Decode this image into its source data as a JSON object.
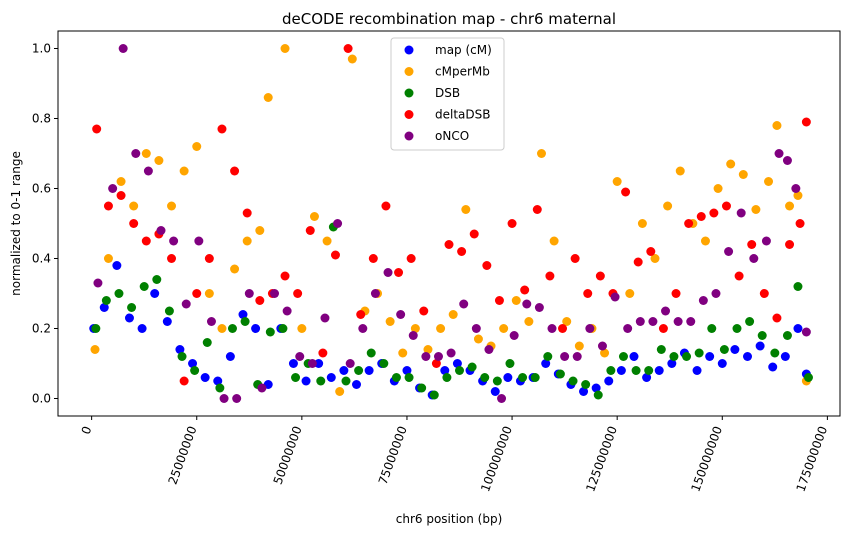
{
  "chart_data": {
    "type": "scatter",
    "title": "deCODE recombination map - chr6 maternal",
    "xlabel": "chr6 position (bp)",
    "ylabel": "normalized to 0-1 range",
    "xlim": [
      -8000000,
      178000000
    ],
    "ylim": [
      -0.05,
      1.05
    ],
    "xticks": [
      0,
      25000000,
      50000000,
      75000000,
      100000000,
      125000000,
      150000000,
      175000000
    ],
    "xtick_labels": [
      "0",
      "25000000",
      "50000000",
      "75000000",
      "100000000",
      "125000000",
      "150000000",
      "175000000"
    ],
    "yticks": [
      0.0,
      0.2,
      0.4,
      0.6,
      0.8,
      1.0
    ],
    "ytick_labels": [
      "0.0",
      "0.2",
      "0.4",
      "0.6",
      "0.8",
      "1.0"
    ],
    "legend_position": "top-center",
    "series": [
      {
        "name": "map (cM)",
        "color": "#0000ff",
        "x": [
          500000,
          3000000,
          6000000,
          9000000,
          12000000,
          15000000,
          18000000,
          21000000,
          24000000,
          27000000,
          30000000,
          33000000,
          36000000,
          39000000,
          42000000,
          45000000,
          48000000,
          51000000,
          54000000,
          57000000,
          60000000,
          63000000,
          66000000,
          69000000,
          72000000,
          75000000,
          78000000,
          81000000,
          84000000,
          87000000,
          90000000,
          93000000,
          96000000,
          99000000,
          102000000,
          105000000,
          108000000,
          111000000,
          114000000,
          117000000,
          120000000,
          123000000,
          126000000,
          129000000,
          132000000,
          135000000,
          138000000,
          141000000,
          144000000,
          147000000,
          150000000,
          153000000,
          156000000,
          159000000,
          162000000,
          165000000,
          168000000,
          170000000
        ],
        "y": [
          0.2,
          0.26,
          0.38,
          0.23,
          0.2,
          0.3,
          0.22,
          0.14,
          0.1,
          0.06,
          0.05,
          0.12,
          0.24,
          0.2,
          0.04,
          0.2,
          0.1,
          0.05,
          0.1,
          0.06,
          0.08,
          0.04,
          0.08,
          0.1,
          0.05,
          0.08,
          0.03,
          0.01,
          0.08,
          0.1,
          0.08,
          0.05,
          0.02,
          0.06,
          0.05,
          0.06,
          0.1,
          0.07,
          0.04,
          0.02,
          0.03,
          0.05,
          0.08,
          0.12,
          0.06,
          0.08,
          0.1,
          0.13,
          0.08,
          0.12,
          0.1,
          0.14,
          0.12,
          0.15,
          0.09,
          0.12,
          0.2,
          0.07
        ]
      },
      {
        "name": "cMperMb",
        "color": "#ffa500",
        "x": [
          800000,
          4000000,
          7000000,
          10000000,
          13000000,
          16000000,
          19000000,
          22000000,
          25000000,
          28000000,
          31000000,
          34000000,
          37000000,
          40000000,
          42000000,
          46000000,
          50000000,
          53000000,
          56000000,
          59000000,
          62000000,
          65000000,
          68000000,
          71000000,
          74000000,
          77000000,
          80000000,
          83000000,
          86000000,
          89000000,
          92000000,
          95000000,
          98000000,
          101000000,
          104000000,
          107000000,
          110000000,
          113000000,
          116000000,
          119000000,
          122000000,
          125000000,
          128000000,
          131000000,
          134000000,
          137000000,
          140000000,
          143000000,
          146000000,
          149000000,
          152000000,
          155000000,
          158000000,
          161000000,
          163000000,
          166000000,
          168000000,
          170000000
        ],
        "y": [
          0.14,
          0.4,
          0.62,
          0.55,
          0.7,
          0.68,
          0.55,
          0.65,
          0.72,
          0.3,
          0.2,
          0.37,
          0.45,
          0.48,
          0.86,
          1.0,
          0.2,
          0.52,
          0.45,
          0.02,
          0.97,
          0.25,
          0.3,
          0.22,
          0.13,
          0.2,
          0.14,
          0.2,
          0.24,
          0.54,
          0.17,
          0.15,
          0.2,
          0.28,
          0.22,
          0.7,
          0.45,
          0.22,
          0.15,
          0.2,
          0.13,
          0.62,
          0.3,
          0.5,
          0.4,
          0.55,
          0.65,
          0.5,
          0.45,
          0.6,
          0.67,
          0.64,
          0.54,
          0.62,
          0.78,
          0.55,
          0.58,
          0.05
        ]
      },
      {
        "name": "DSB",
        "color": "#008000",
        "x": [
          1000000,
          3500000,
          6500000,
          9500000,
          12500000,
          15500000,
          18500000,
          21500000,
          24500000,
          27500000,
          30500000,
          33500000,
          36500000,
          39500000,
          42500000,
          45500000,
          48500000,
          51500000,
          54500000,
          57500000,
          60500000,
          63500000,
          66500000,
          69500000,
          72500000,
          75500000,
          78500000,
          81500000,
          84500000,
          87500000,
          90500000,
          93500000,
          96500000,
          99500000,
          102500000,
          105500000,
          108500000,
          111500000,
          114500000,
          117500000,
          120500000,
          123500000,
          126500000,
          129500000,
          132500000,
          135500000,
          138500000,
          141500000,
          144500000,
          147500000,
          150500000,
          153500000,
          156500000,
          159500000,
          162500000,
          165500000,
          168000000,
          170500000
        ],
        "y": [
          0.2,
          0.28,
          0.3,
          0.26,
          0.32,
          0.34,
          0.25,
          0.12,
          0.08,
          0.16,
          0.03,
          0.2,
          0.22,
          0.04,
          0.19,
          0.2,
          0.06,
          0.1,
          0.05,
          0.49,
          0.05,
          0.08,
          0.13,
          0.1,
          0.06,
          0.06,
          0.03,
          0.01,
          0.06,
          0.08,
          0.09,
          0.06,
          0.05,
          0.1,
          0.06,
          0.06,
          0.12,
          0.07,
          0.05,
          0.04,
          0.01,
          0.08,
          0.12,
          0.08,
          0.08,
          0.14,
          0.12,
          0.12,
          0.13,
          0.2,
          0.14,
          0.2,
          0.22,
          0.18,
          0.13,
          0.18,
          0.32,
          0.06
        ]
      },
      {
        "name": "deltaDSB",
        "color": "#ff0000",
        "x": [
          1200000,
          4000000,
          7000000,
          10000000,
          13000000,
          16000000,
          19000000,
          22000000,
          25000000,
          28000000,
          31000000,
          34000000,
          37000000,
          40000000,
          43000000,
          46000000,
          49000000,
          52000000,
          55000000,
          58000000,
          61000000,
          64000000,
          67000000,
          70000000,
          73000000,
          76000000,
          79000000,
          82000000,
          85000000,
          88000000,
          91000000,
          94000000,
          97000000,
          100000000,
          103000000,
          106000000,
          109000000,
          112000000,
          115000000,
          118000000,
          121000000,
          124000000,
          127000000,
          130000000,
          133000000,
          136000000,
          139000000,
          142000000,
          145000000,
          148000000,
          151000000,
          154000000,
          157000000,
          160000000,
          163000000,
          166000000,
          168500000,
          170000000
        ],
        "y": [
          0.77,
          0.55,
          0.58,
          0.5,
          0.45,
          0.47,
          0.4,
          0.05,
          0.3,
          0.4,
          0.77,
          0.65,
          0.53,
          0.28,
          0.3,
          0.35,
          0.3,
          0.48,
          0.13,
          0.41,
          1.0,
          0.24,
          0.4,
          0.55,
          0.36,
          0.4,
          0.25,
          0.1,
          0.44,
          0.42,
          0.47,
          0.38,
          0.28,
          0.5,
          0.31,
          0.54,
          0.35,
          0.2,
          0.4,
          0.3,
          0.35,
          0.3,
          0.59,
          0.39,
          0.42,
          0.2,
          0.3,
          0.5,
          0.52,
          0.53,
          0.55,
          0.35,
          0.44,
          0.3,
          0.23,
          0.44,
          0.5,
          0.79
        ]
      },
      {
        "name": "oNCO",
        "color": "#800080",
        "x": [
          1500000,
          5000000,
          7500000,
          10500000,
          13500000,
          16500000,
          19500000,
          22500000,
          25500000,
          28500000,
          31500000,
          34500000,
          37500000,
          40500000,
          43500000,
          46500000,
          49500000,
          52500000,
          55500000,
          58500000,
          61500000,
          64500000,
          67500000,
          70500000,
          73500000,
          76500000,
          79500000,
          82500000,
          85500000,
          88500000,
          91500000,
          94500000,
          97500000,
          100500000,
          103500000,
          106500000,
          109500000,
          112500000,
          115500000,
          118500000,
          121500000,
          124500000,
          127500000,
          130500000,
          133500000,
          136500000,
          139500000,
          142500000,
          145500000,
          148500000,
          151500000,
          154500000,
          157500000,
          160500000,
          163500000,
          165500000,
          167500000,
          170000000
        ],
        "y": [
          0.33,
          0.6,
          1.0,
          0.7,
          0.65,
          0.48,
          0.45,
          0.27,
          0.45,
          0.22,
          0.0,
          0.0,
          0.3,
          0.03,
          0.3,
          0.25,
          0.12,
          0.1,
          0.23,
          0.5,
          0.1,
          0.2,
          0.3,
          0.36,
          0.24,
          0.18,
          0.12,
          0.12,
          0.13,
          0.27,
          0.2,
          0.14,
          0.0,
          0.18,
          0.27,
          0.26,
          0.2,
          0.12,
          0.12,
          0.2,
          0.15,
          0.29,
          0.2,
          0.22,
          0.22,
          0.25,
          0.22,
          0.22,
          0.28,
          0.3,
          0.42,
          0.53,
          0.4,
          0.45,
          0.7,
          0.68,
          0.6,
          0.19
        ]
      }
    ]
  }
}
